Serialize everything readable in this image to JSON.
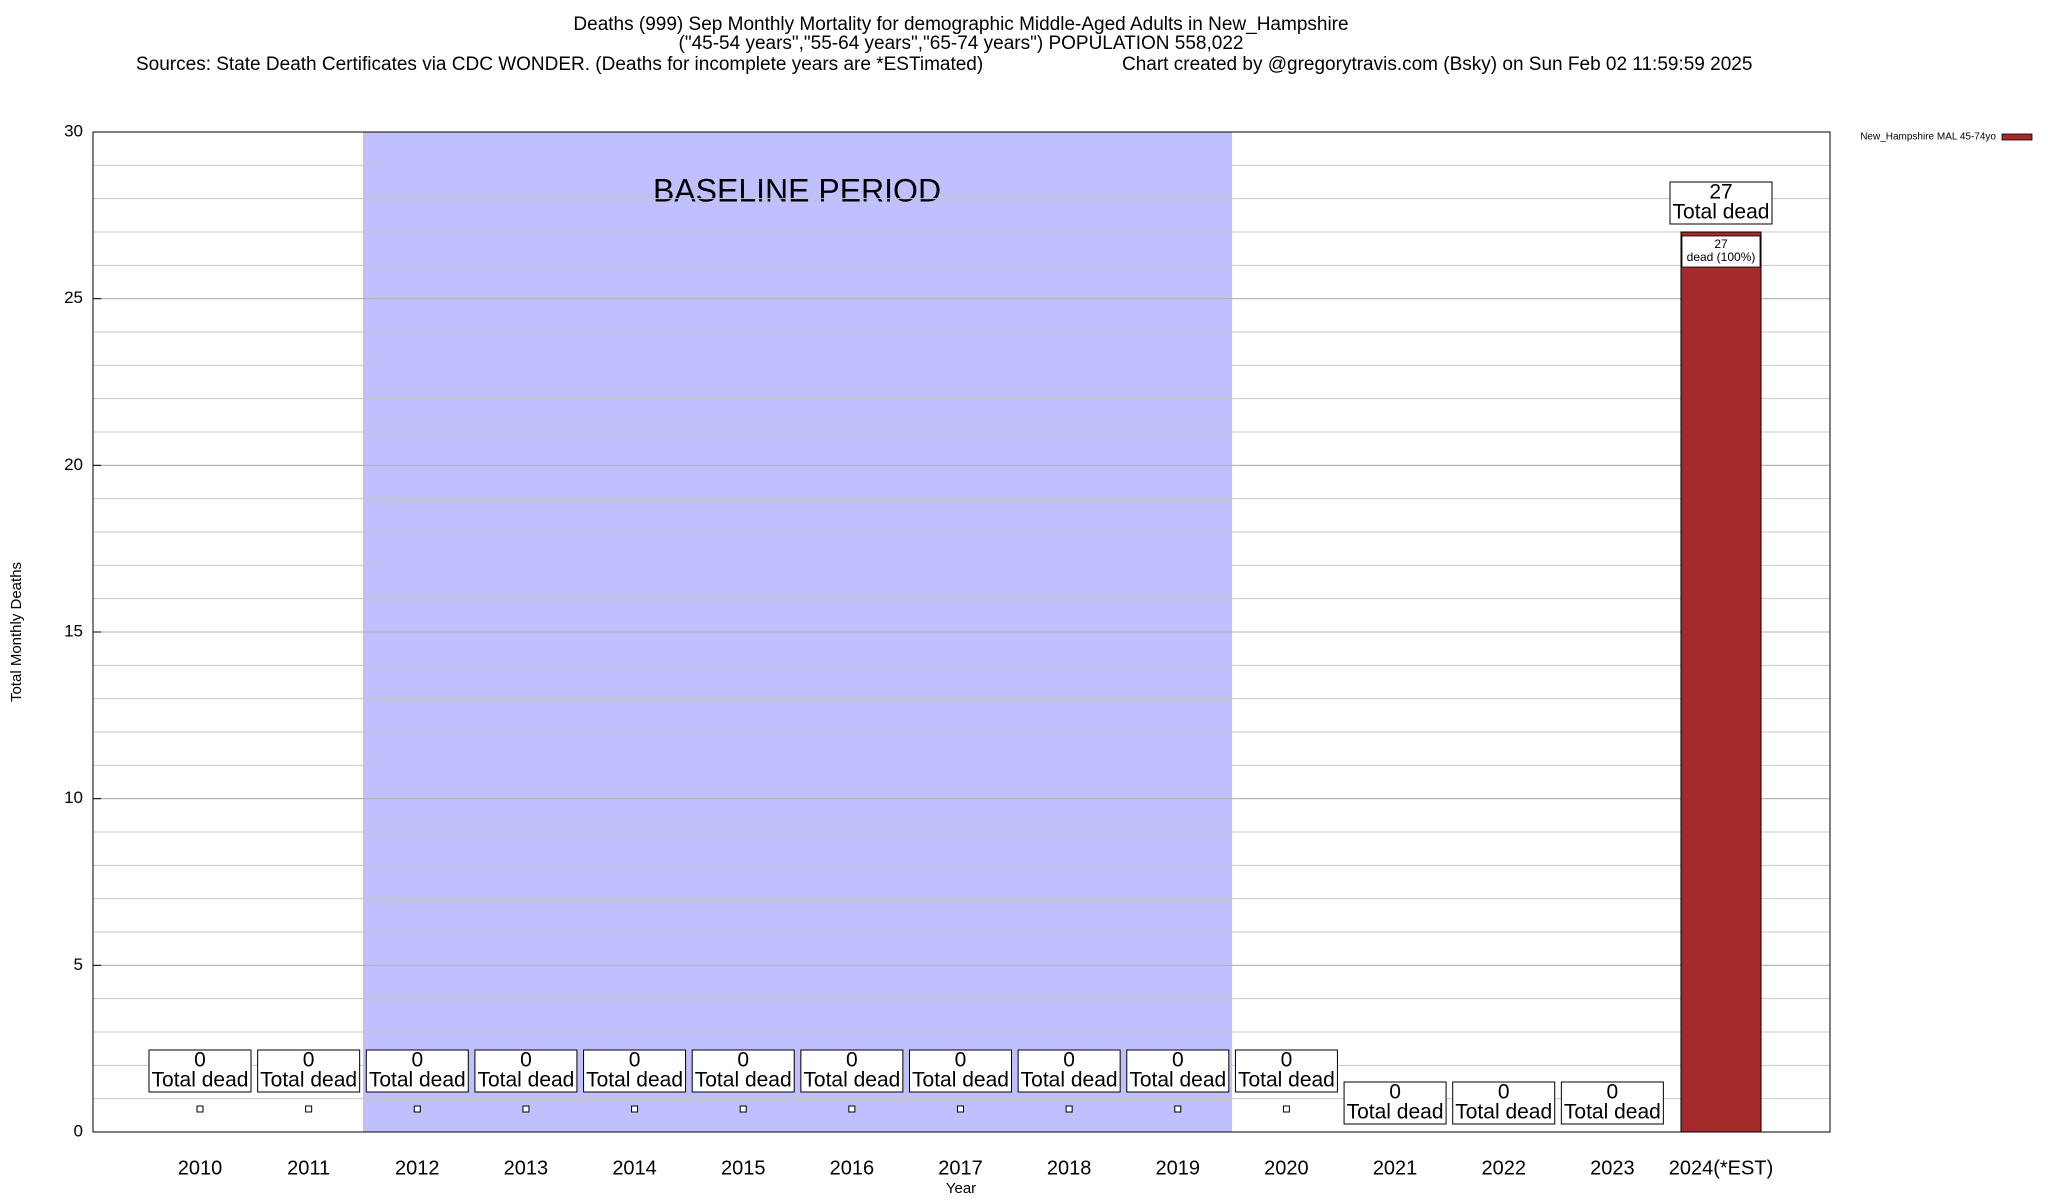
{
  "chart_data": {
    "type": "bar",
    "title": "Deaths (999) Sep Monthly Mortality for demographic Middle-Aged Adults in New_Hampshire",
    "subtitle": "(\"45-54 years\",\"55-64 years\",\"65-74 years\") POPULATION 558,022",
    "sources": "Sources: State Death Certificates via CDC WONDER. (Deaths for incomplete years are *ESTimated)",
    "credit": "Chart created by @gregorytravis.com (Bsky) on Sun Feb 02 11:59:59 2025",
    "x_label": "Year",
    "y_label": "Total Monthly Deaths",
    "annotation": "BASELINE PERIOD",
    "total_label": "Total dead",
    "categories": [
      "2010",
      "2011",
      "2012",
      "2013",
      "2014",
      "2015",
      "2016",
      "2017",
      "2018",
      "2019",
      "2020",
      "2021",
      "2022",
      "2023",
      "2024(*EST)"
    ],
    "series": [
      {
        "name": "New_Hampshire MAL 45-74yo",
        "color": "#a52a2a",
        "values": [
          0,
          0,
          0,
          0,
          0,
          0,
          0,
          0,
          0,
          0,
          0,
          0,
          0,
          0,
          27
        ],
        "segment_labels": [
          null,
          null,
          null,
          null,
          null,
          null,
          null,
          null,
          null,
          null,
          null,
          null,
          null,
          null,
          "dead (100%)"
        ]
      }
    ],
    "ylim": [
      0,
      30
    ],
    "yticks": [
      0,
      5,
      10,
      15,
      20,
      25,
      30
    ],
    "grid": true,
    "legend": "top-right"
  }
}
